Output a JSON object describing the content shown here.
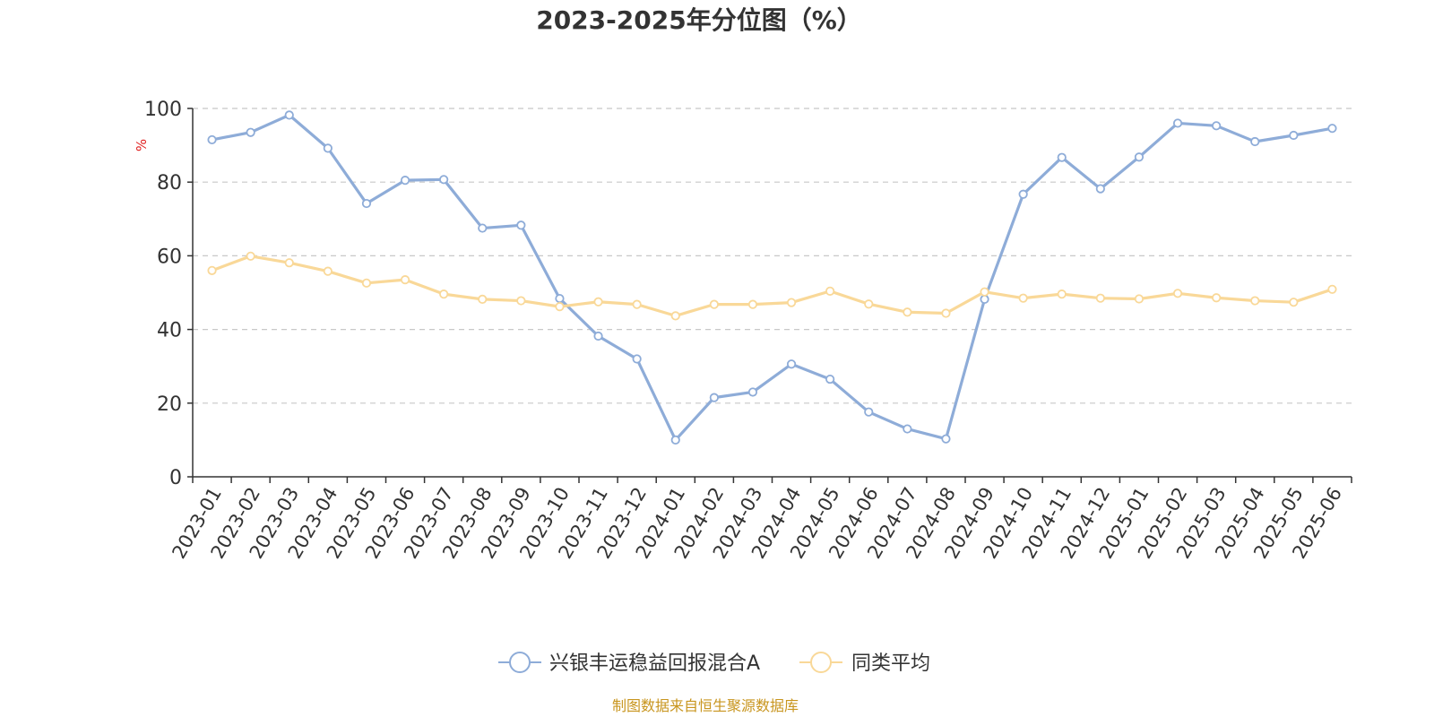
{
  "chart_data": {
    "type": "line",
    "title": "2023-2025年分位图（%）",
    "ylabel": "%",
    "ylim": [
      0,
      100
    ],
    "yticks": [
      0,
      20,
      40,
      60,
      80,
      100
    ],
    "grid": true,
    "legend_position": "bottom",
    "categories": [
      "2023-01",
      "2023-02",
      "2023-03",
      "2023-04",
      "2023-05",
      "2023-06",
      "2023-07",
      "2023-08",
      "2023-09",
      "2023-10",
      "2023-11",
      "2023-12",
      "2024-01",
      "2024-02",
      "2024-03",
      "2024-04",
      "2024-05",
      "2024-06",
      "2024-07",
      "2024-08",
      "2024-09",
      "2024-10",
      "2024-11",
      "2024-12",
      "2025-01",
      "2025-02",
      "2025-03",
      "2025-04",
      "2025-05",
      "2025-06"
    ],
    "series": [
      {
        "name": "兴银丰运稳益回报混合A",
        "color": "#8eacd8",
        "values": [
          91.5,
          93.5,
          98.2,
          89.2,
          74.2,
          80.5,
          80.7,
          67.5,
          68.3,
          48.4,
          38.2,
          32.0,
          10.0,
          21.5,
          23.0,
          30.6,
          26.5,
          17.6,
          13.0,
          10.3,
          48.2,
          76.7,
          86.7,
          78.2,
          86.8,
          96.0,
          95.3,
          91.0,
          92.7,
          94.6
        ]
      },
      {
        "name": "同类平均",
        "color": "#f9d898",
        "values": [
          56.0,
          59.9,
          58.1,
          55.8,
          52.6,
          53.5,
          49.6,
          48.2,
          47.8,
          46.2,
          47.5,
          46.8,
          43.7,
          46.8,
          46.8,
          47.3,
          50.4,
          46.9,
          44.7,
          44.4,
          50.2,
          48.5,
          49.6,
          48.5,
          48.3,
          49.8,
          48.6,
          47.8,
          47.4,
          50.9
        ]
      }
    ]
  },
  "source": "制图数据来自恒生聚源数据库",
  "colors": {
    "axis": "#333333",
    "grid": "#c8c8c8",
    "ylabel": "#e02020",
    "source": "#c8951e"
  }
}
